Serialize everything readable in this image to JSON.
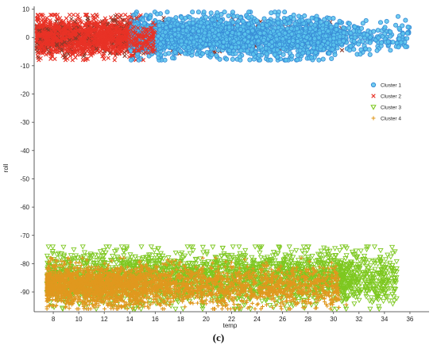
{
  "panel_label": "(c)",
  "chart_data": {
    "type": "scatter",
    "title": "",
    "xlabel": "temp",
    "ylabel": "roll",
    "xlim": [
      6.5,
      37.5
    ],
    "ylim": [
      -97,
      11
    ],
    "xticks": [
      8,
      10,
      12,
      14,
      16,
      18,
      20,
      22,
      24,
      26,
      28,
      30,
      32,
      34,
      36
    ],
    "yticks": [
      10,
      0,
      -10,
      -20,
      -30,
      -40,
      -50,
      -60,
      -70,
      -80,
      -90
    ],
    "grid": false,
    "legend_position": "right",
    "series": [
      {
        "name": "Cluster 1",
        "marker": "circle",
        "color": "#3a8fd8",
        "fill": "#5bc4ec",
        "x_range": [
          14,
          36
        ],
        "y_range": [
          -8,
          9
        ],
        "approx_center": {
          "x": 23,
          "y": 0
        }
      },
      {
        "name": "Cluster 2",
        "marker": "x",
        "color": "#e83226",
        "secondary_color": "#8a3a2a",
        "x_range": [
          6.5,
          31
        ],
        "y_range": [
          -8,
          8
        ],
        "approx_center": {
          "x": 10.5,
          "y": 0
        }
      },
      {
        "name": "Cluster 3",
        "marker": "triangle-down",
        "color": "#7ec820",
        "x_range": [
          7,
          35
        ],
        "y_range": [
          -96,
          -74
        ],
        "approx_center": {
          "x": 18,
          "y": -85
        }
      },
      {
        "name": "Cluster 4",
        "marker": "plus",
        "color": "#e0981e",
        "x_range": [
          7,
          31
        ],
        "y_range": [
          -96,
          -78
        ],
        "approx_center": {
          "x": 12,
          "y": -88
        }
      }
    ]
  }
}
